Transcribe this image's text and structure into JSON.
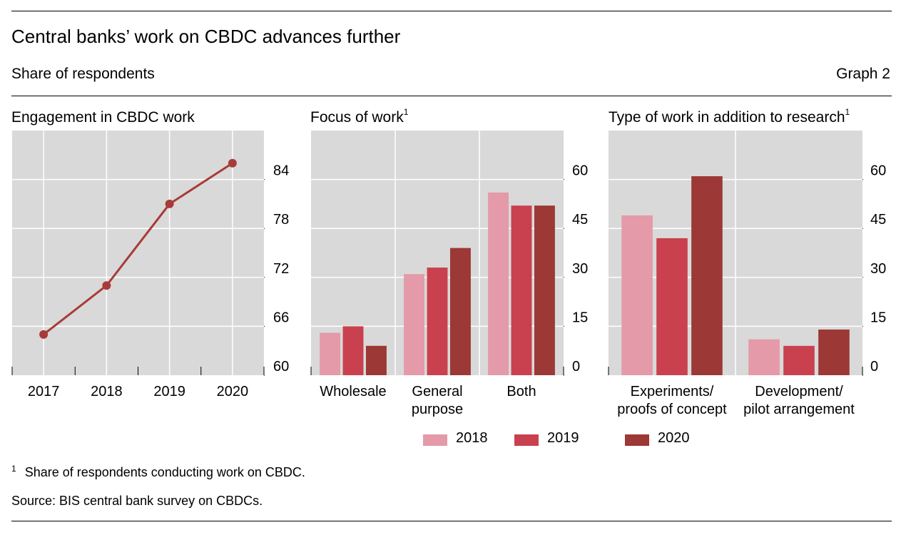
{
  "header": {
    "title": "Central banks’ work on CBDC advances further",
    "subtitle": "Share of respondents",
    "graph_number": "Graph 2"
  },
  "panels": [
    {
      "title": "Engagement in CBDC work",
      "footnote_mark": ""
    },
    {
      "title": "Focus of work",
      "footnote_mark": "1"
    },
    {
      "title": "Type of work in addition to research",
      "footnote_mark": "1"
    }
  ],
  "legend": [
    {
      "label": "2018",
      "color": "#e49aa8"
    },
    {
      "label": "2019",
      "color": "#c9414e"
    },
    {
      "label": "2020",
      "color": "#9c3835"
    }
  ],
  "footnote": {
    "mark": "1",
    "text": "Share of respondents conducting work on CBDC."
  },
  "source": "Source: BIS central bank survey on CBDCs.",
  "chart_data": [
    {
      "type": "line",
      "title": "Engagement in CBDC work",
      "x": [
        "2017",
        "2018",
        "2019",
        "2020"
      ],
      "series": [
        {
          "values": [
            65,
            71,
            81,
            86
          ],
          "color": "#a83b38"
        }
      ],
      "ylim": [
        60,
        90
      ],
      "yticks": [
        60,
        66,
        72,
        78,
        84
      ],
      "y_axis_side": "right",
      "grid": true
    },
    {
      "type": "bar",
      "title": "Focus of work",
      "categories": [
        "Wholesale",
        "General purpose",
        "Both"
      ],
      "category_lines": [
        [
          "Wholesale"
        ],
        [
          "General",
          "purpose"
        ],
        [
          "Both"
        ]
      ],
      "series": [
        {
          "name": "2018",
          "values": [
            13,
            31,
            56
          ]
        },
        {
          "name": "2019",
          "values": [
            15,
            33,
            52
          ]
        },
        {
          "name": "2020",
          "values": [
            9,
            39,
            52
          ]
        }
      ],
      "ylim": [
        0,
        75
      ],
      "yticks": [
        0,
        15,
        30,
        45,
        60
      ],
      "y_axis_side": "right",
      "grid": true
    },
    {
      "type": "bar",
      "title": "Type of work in addition to research",
      "categories": [
        "Experiments/ proofs of concept",
        "Development/ pilot arrangement"
      ],
      "category_lines": [
        [
          "Experiments/",
          "proofs of concept"
        ],
        [
          "Development/",
          "pilot arrangement"
        ]
      ],
      "series": [
        {
          "name": "2018",
          "values": [
            49,
            11
          ]
        },
        {
          "name": "2019",
          "values": [
            42,
            9
          ]
        },
        {
          "name": "2020",
          "values": [
            61,
            14
          ]
        }
      ],
      "ylim": [
        0,
        75
      ],
      "yticks": [
        0,
        15,
        30,
        45,
        60
      ],
      "y_axis_side": "right",
      "grid": true
    }
  ]
}
